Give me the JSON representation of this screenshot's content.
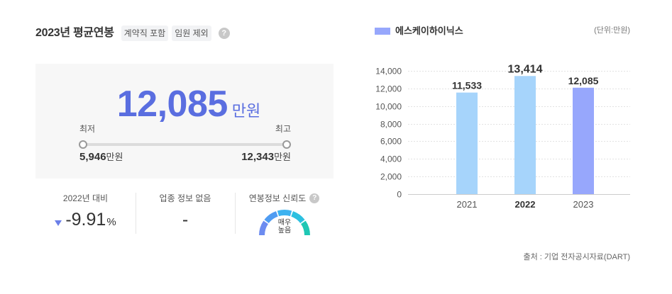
{
  "salary_summary": {
    "title": "2023년 평균연봉",
    "tags": [
      "계약직 포함",
      "임원 제외"
    ],
    "help_icon": "question-circle-icon",
    "average_value": "12,085",
    "average_unit": "만원",
    "range": {
      "min_label": "최저",
      "max_label": "최고",
      "min_value": "5,946",
      "max_value": "12,343",
      "unit": "만원"
    }
  },
  "stats": {
    "yoy": {
      "label": "2022년 대비",
      "trend_icon": "triangle-down-icon",
      "value": "-9.91",
      "unit": "%"
    },
    "industry": {
      "label": "업종 정보 없음",
      "value": "-"
    },
    "reliability": {
      "label": "연봉정보 신뢰도",
      "help_icon": "question-circle-icon",
      "level_lines": [
        "매우",
        "높음"
      ],
      "gauge_colors": [
        "#6d8cf0",
        "#4f9cf2",
        "#3cb2f0",
        "#2cc0e0",
        "#1fc7b4"
      ]
    }
  },
  "colors": {
    "accent": "#5a6ee0",
    "trend_down": "#6b7fe8"
  },
  "chart_data": {
    "type": "bar",
    "legend": {
      "color": "#97a7fc",
      "placement": "top-left"
    },
    "unit_label": "(단위:만원)",
    "categories": [
      "2021",
      "2022",
      "2023"
    ],
    "series": [
      {
        "name": "에스케이하이닉스",
        "values": [
          11533,
          13414,
          12085
        ]
      }
    ],
    "value_labels": [
      "11,533",
      "13,414",
      "12,085"
    ],
    "bar_colors": [
      "#a6d4fb",
      "#a6d4fb",
      "#97a7fc"
    ],
    "ylim": [
      0,
      14000
    ],
    "yticks": [
      0,
      2000,
      4000,
      6000,
      8000,
      10000,
      12000,
      14000
    ],
    "ytick_labels": [
      "0",
      "2,000",
      "4,000",
      "6,000",
      "8,000",
      "10,000",
      "12,000",
      "14,000"
    ],
    "grid": true
  },
  "source": "출처 : 기업 전자공시자료(DART)"
}
